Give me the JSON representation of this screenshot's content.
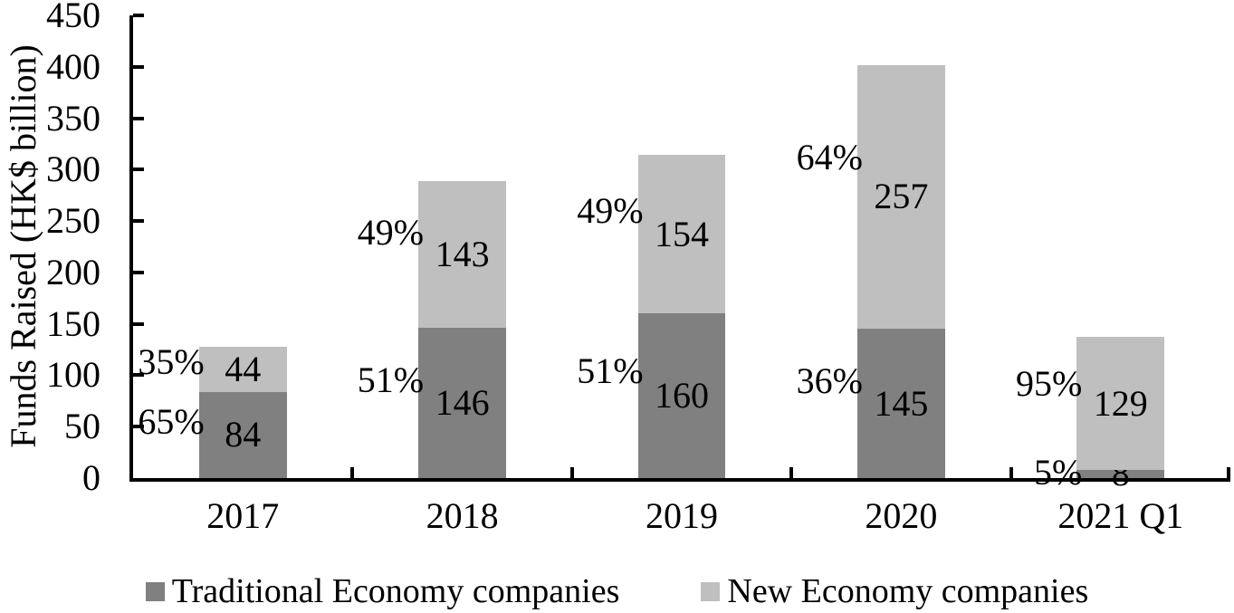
{
  "chart_data": {
    "type": "bar",
    "stacked": true,
    "title": "",
    "ylabel": "Funds Raised (HK$ billion)",
    "xlabel": "",
    "ylim": [
      0,
      450
    ],
    "ytick_step": 50,
    "ytick_labels": [
      "0",
      "50",
      "100",
      "150",
      "200",
      "250",
      "300",
      "350",
      "400",
      "450"
    ],
    "grid": false,
    "legend_position": "bottom",
    "categories": [
      "2017",
      "2018",
      "2019",
      "2020",
      "2021 Q1"
    ],
    "series": [
      {
        "name": "Traditional Economy companies",
        "color": "#808080",
        "values": [
          84,
          146,
          160,
          145,
          8
        ],
        "percent_labels": [
          "65%",
          "51%",
          "51%",
          "36%",
          "5%"
        ]
      },
      {
        "name": "New Economy companies",
        "color": "#bfbfbf",
        "values": [
          44,
          143,
          154,
          257,
          129
        ],
        "percent_labels": [
          "35%",
          "49%",
          "49%",
          "64%",
          "95%"
        ]
      }
    ],
    "colors": {
      "axis": "#000000",
      "text": "#000000",
      "background": "#ffffff"
    }
  }
}
